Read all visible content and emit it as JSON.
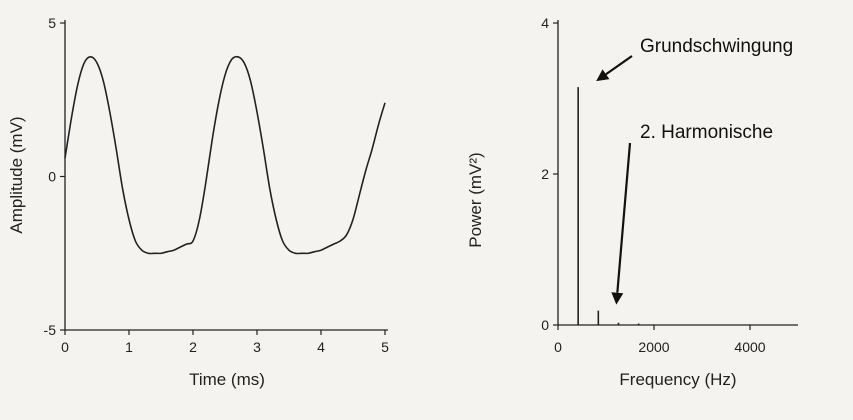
{
  "chart_data": [
    {
      "type": "line",
      "xlabel": "Time (ms)",
      "ylabel": "Amplitude (mV)",
      "xlim": [
        0,
        5
      ],
      "ylim": [
        -5,
        5
      ],
      "x_ticks": [
        "0",
        "1",
        "2",
        "3",
        "4",
        "5"
      ],
      "y_ticks": [
        "5",
        "0",
        "-5"
      ],
      "series": [
        {
          "x": [
            0.0,
            0.1,
            0.2,
            0.3,
            0.4,
            0.5,
            0.6,
            0.7,
            0.8,
            0.9,
            1.0,
            1.1,
            1.2,
            1.3,
            1.4,
            1.5,
            1.6,
            1.7,
            1.8,
            1.9,
            2.0,
            2.1,
            2.2,
            2.3,
            2.4,
            2.5,
            2.6,
            2.7,
            2.8,
            2.9,
            3.0,
            3.1,
            3.2,
            3.3,
            3.4,
            3.5,
            3.6,
            3.7,
            3.8,
            3.9,
            4.0,
            4.1,
            4.2,
            4.3,
            4.4,
            4.5,
            4.6,
            4.7,
            4.8,
            4.9,
            5.0
          ],
          "values": [
            0.6,
            1.9,
            3.0,
            3.7,
            3.9,
            3.7,
            3.1,
            2.1,
            0.9,
            -0.4,
            -1.4,
            -2.1,
            -2.4,
            -2.5,
            -2.5,
            -2.5,
            -2.45,
            -2.4,
            -2.3,
            -2.2,
            -2.1,
            -1.4,
            -0.2,
            1.2,
            2.4,
            3.3,
            3.8,
            3.9,
            3.7,
            3.1,
            2.1,
            0.9,
            -0.4,
            -1.4,
            -2.1,
            -2.4,
            -2.5,
            -2.5,
            -2.5,
            -2.45,
            -2.4,
            -2.3,
            -2.2,
            -2.1,
            -1.9,
            -1.4,
            -0.6,
            0.2,
            0.9,
            1.7,
            2.4
          ]
        }
      ]
    },
    {
      "type": "line",
      "xlabel": "Frequency (Hz)",
      "ylabel": "Power (mV²)",
      "xlim": [
        0,
        5000
      ],
      "ylim": [
        0,
        4
      ],
      "x_ticks": [
        "0",
        "2000",
        "4000"
      ],
      "y_ticks": [
        "4",
        "2",
        "0"
      ],
      "peaks": [
        {
          "x": 420,
          "value": 3.15
        },
        {
          "x": 840,
          "value": 0.19
        },
        {
          "x": 1260,
          "value": 0.03
        },
        {
          "x": 1680,
          "value": 0.02
        }
      ],
      "annotations": [
        {
          "text": "Grundschwingung",
          "x": 420,
          "value": 3.15
        },
        {
          "text": "2. Harmonische",
          "x": 840,
          "value": 0.19
        }
      ]
    }
  ]
}
